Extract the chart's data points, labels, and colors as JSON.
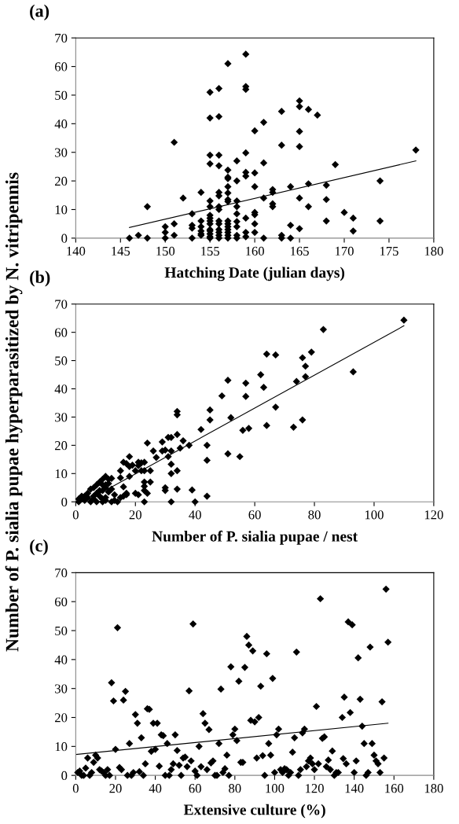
{
  "chart_data": [
    {
      "type": "scatter",
      "title": "(a)",
      "xlabel": "Hatching Date (julian days)",
      "xlim": [
        140,
        180
      ],
      "xticks": [
        140,
        145,
        150,
        155,
        160,
        165,
        170,
        175,
        180
      ],
      "ylim": [
        0,
        70
      ],
      "yticks": [
        0,
        10,
        20,
        30,
        40,
        50,
        60,
        70
      ],
      "grid": false,
      "legend": false,
      "tick_labels": "xy",
      "series": [
        {
          "marker": "diamond",
          "color": "#000000",
          "x": [
            146,
            147,
            148,
            148,
            150,
            150,
            150,
            151,
            151,
            151,
            152,
            153,
            153,
            153,
            153,
            154,
            154,
            154,
            154,
            154,
            154,
            155,
            155,
            155,
            155,
            155,
            155,
            155,
            155,
            155,
            155,
            155,
            155,
            155,
            155,
            155,
            156,
            156,
            156,
            156,
            156,
            156,
            156,
            156,
            156,
            156,
            156,
            156,
            156,
            156,
            157,
            157,
            157,
            157,
            157,
            157,
            157,
            157,
            157,
            157,
            157,
            157,
            157,
            157,
            157,
            158,
            158,
            158,
            158,
            158,
            158,
            158,
            158,
            158,
            159,
            159,
            159,
            159,
            159,
            159,
            159,
            159,
            159,
            160,
            160,
            160,
            160,
            160,
            160,
            160,
            161,
            161,
            161,
            161,
            162,
            162,
            162,
            162,
            163,
            163,
            163,
            163,
            164,
            164,
            164,
            165,
            165,
            165,
            165,
            165,
            165,
            166,
            166,
            166,
            167,
            168,
            168,
            168,
            169,
            170,
            171,
            171,
            174,
            174,
            178
          ],
          "values": [
            0,
            1,
            11,
            0,
            4,
            2,
            0,
            33.5,
            5,
            1,
            14,
            8.5,
            4.5,
            3.5,
            0,
            16,
            6,
            4,
            2.5,
            1.5,
            1,
            51,
            42,
            29,
            26,
            13,
            11,
            8,
            7,
            6,
            5,
            3,
            2.5,
            1.5,
            0.5,
            0,
            52.3,
            42.5,
            29,
            25.3,
            16,
            14.8,
            11,
            10,
            6,
            5,
            3,
            2,
            1,
            0,
            61,
            23.8,
            21.3,
            20.8,
            18,
            15.8,
            13.5,
            12.8,
            6,
            5,
            4,
            3,
            2,
            1,
            0,
            27,
            20,
            13,
            11,
            8.5,
            5.8,
            4,
            1,
            0,
            64.3,
            53,
            52,
            29.8,
            23,
            21.7,
            7,
            2,
            0.5,
            37.5,
            22.8,
            18,
            9,
            8.2,
            5,
            2,
            40.5,
            26.3,
            14,
            0,
            17,
            16,
            12,
            11,
            44.3,
            32.5,
            1,
            0,
            18,
            4.5,
            0,
            48,
            46,
            37.3,
            32,
            14,
            3.3,
            45,
            19,
            11,
            43,
            18.5,
            13.5,
            6,
            25.7,
            9,
            7,
            2.5,
            20,
            6,
            30.8
          ]
        },
        {
          "type": "line",
          "color": "#000000",
          "x": [
            146,
            178
          ],
          "values": [
            3.7,
            27
          ]
        }
      ]
    },
    {
      "type": "scatter",
      "title": "(b)",
      "xlabel": "Number of P. sialia pupae / nest",
      "ylabel": "Number of P. sialia pupae hyperparasitized by N. vitripennis",
      "xlim": [
        0,
        120
      ],
      "xticks": [
        0,
        20,
        40,
        60,
        80,
        100,
        120
      ],
      "ylim": [
        0,
        70
      ],
      "yticks": [
        0,
        10,
        20,
        30,
        40,
        50,
        60,
        70
      ],
      "grid": false,
      "legend": false,
      "series": [
        {
          "marker": "diamond",
          "color": "#000000",
          "x": [
            110,
            83,
            64,
            67,
            79,
            76,
            77,
            93,
            62,
            77,
            74,
            51,
            57,
            63,
            49,
            57,
            67,
            45,
            34,
            34,
            52,
            45,
            76,
            64,
            73,
            58,
            56,
            42,
            34,
            31,
            32,
            36,
            29,
            24,
            38,
            44,
            35,
            29,
            30,
            26,
            32,
            51,
            55,
            31,
            27,
            18,
            44,
            16,
            17,
            21,
            22,
            23,
            32,
            19,
            18,
            21,
            15,
            20,
            22,
            23,
            25,
            34,
            32,
            18,
            15,
            10,
            12,
            9,
            11,
            8,
            23,
            25,
            11,
            7,
            9,
            10,
            23,
            16,
            6,
            30,
            10,
            5,
            13,
            34,
            39,
            30,
            23,
            24,
            12,
            9,
            11,
            20,
            21,
            7,
            4,
            17,
            17,
            16,
            15,
            3,
            6,
            8,
            9,
            10,
            1,
            2,
            2,
            3,
            5,
            7,
            9,
            12,
            14,
            23,
            32,
            40,
            44,
            1,
            4,
            8,
            6,
            13,
            10
          ],
          "values": [
            64.3,
            61,
            52.3,
            52,
            53,
            51,
            48,
            46,
            45,
            44.3,
            42.6,
            43,
            42,
            40.5,
            37.5,
            37.3,
            33.5,
            32.5,
            32,
            30.8,
            29.8,
            29,
            29,
            27,
            26.4,
            26,
            25.3,
            25.6,
            23.8,
            22.8,
            22.8,
            21.6,
            21.2,
            20.8,
            20,
            20,
            19,
            18,
            18.3,
            18,
            18,
            17,
            16,
            16,
            15.7,
            16,
            14.7,
            14,
            13.5,
            14,
            13.8,
            14,
            13.3,
            13,
            12.5,
            12.8,
            11,
            11,
            11,
            11,
            11,
            11,
            10,
            9,
            8.5,
            9,
            8.3,
            8,
            8,
            7,
            7,
            7,
            6.5,
            6,
            6,
            6,
            5.5,
            5.3,
            5,
            5,
            5,
            4.5,
            2.5,
            4.5,
            4.2,
            4,
            4,
            3,
            4.5,
            4,
            3.5,
            3,
            2.5,
            3,
            3,
            3,
            2.5,
            2,
            1.5,
            2,
            2,
            2,
            1,
            0.5,
            1,
            1,
            2,
            0.5,
            0,
            0,
            0,
            0,
            0,
            0,
            0,
            0,
            2,
            0,
            1.5,
            4,
            1,
            0.5,
            1.5
          ]
        },
        {
          "type": "line",
          "color": "#000000",
          "x": [
            3,
            110
          ],
          "values": [
            0,
            62.3
          ]
        }
      ]
    },
    {
      "type": "scatter",
      "title": "(c)",
      "xlabel": "Extensive culture (%)",
      "xlim": [
        0,
        180
      ],
      "xticks": [
        0,
        20,
        40,
        60,
        80,
        100,
        120,
        140,
        160,
        180
      ],
      "ylim": [
        0,
        70
      ],
      "yticks": [
        0,
        10,
        20,
        30,
        40,
        50,
        60,
        70
      ],
      "grid": false,
      "legend": false,
      "series": [
        {
          "marker": "diamond",
          "color": "#000000",
          "x": [
            1,
            2,
            3,
            4,
            5,
            6,
            7,
            8,
            9,
            10,
            11,
            12,
            13,
            14,
            15,
            16,
            17,
            18,
            19,
            20,
            21,
            22,
            23,
            24,
            25,
            26,
            27,
            28,
            29,
            30,
            31,
            32,
            33,
            34,
            35,
            36,
            37,
            38,
            39,
            40,
            41,
            42,
            43,
            44,
            45,
            46,
            47,
            48,
            49,
            50,
            51,
            52,
            53,
            54,
            55,
            56,
            57,
            58,
            59,
            60,
            61,
            62,
            63,
            64,
            65,
            66,
            67,
            68,
            69,
            70,
            71,
            72,
            73,
            74,
            75,
            76,
            77,
            78,
            79,
            80,
            81,
            82,
            83,
            84,
            85,
            86,
            87,
            88,
            89,
            90,
            91,
            92,
            93,
            94,
            95,
            96,
            97,
            98,
            99,
            100,
            101,
            102,
            103,
            104,
            105,
            106,
            107,
            108,
            109,
            110,
            111,
            112,
            113,
            114,
            115,
            116,
            117,
            118,
            119,
            120,
            121,
            122,
            123,
            124,
            125,
            126,
            127,
            128,
            129,
            130,
            131,
            132,
            134,
            134.5,
            135,
            136,
            137,
            138,
            139,
            140,
            141,
            142,
            143,
            144,
            145,
            146,
            147,
            148,
            149,
            150,
            151,
            152,
            153,
            154,
            155,
            156,
            157
          ],
          "values": [
            1,
            1.5,
            0,
            0,
            2.5,
            6,
            0,
            1,
            4.5,
            7,
            6,
            2,
            1.5,
            1,
            0,
            2,
            0,
            32,
            25.7,
            9,
            51,
            2.7,
            2,
            26,
            29,
            0,
            11,
            0,
            1,
            21,
            18,
            1.3,
            13,
            0,
            4,
            23,
            22.8,
            8.3,
            18,
            9,
            18,
            3.2,
            14,
            13.7,
            0,
            11,
            0,
            2,
            4,
            14,
            8.6,
            3.5,
            0,
            6,
            6.3,
            3,
            29.2,
            5,
            52.3,
            1.5,
            0,
            10,
            3,
            21.3,
            18,
            2,
            15.8,
            4.3,
            5,
            0,
            0,
            11,
            29.8,
            1,
            2.3,
            7,
            0,
            37.5,
            14,
            16,
            12,
            32.5,
            4.5,
            4.5,
            37.3,
            48,
            45,
            19,
            43,
            18.5,
            6,
            20,
            30.8,
            6.8,
            0,
            42,
            11,
            7,
            33.5,
            1,
            14,
            16,
            2,
            1,
            2.3,
            2,
            0,
            1,
            8,
            13,
            42.6,
            0,
            2,
            14.7,
            16,
            3,
            5,
            6,
            4,
            2,
            23.8,
            4,
            61,
            12.8,
            13.3,
            3,
            5.3,
            2,
            8.4,
            0,
            1,
            1,
            20,
            5.8,
            27,
            4,
            53,
            21.7,
            52,
            1,
            5,
            40.6,
            26.3,
            17,
            11,
            0,
            1,
            44.3,
            11,
            7,
            5,
            4,
            1,
            25.4,
            6,
            64.3,
            46
          ]
        },
        {
          "type": "line",
          "color": "#000000",
          "x": [
            0,
            157
          ],
          "values": [
            7.2,
            18
          ]
        }
      ]
    }
  ]
}
